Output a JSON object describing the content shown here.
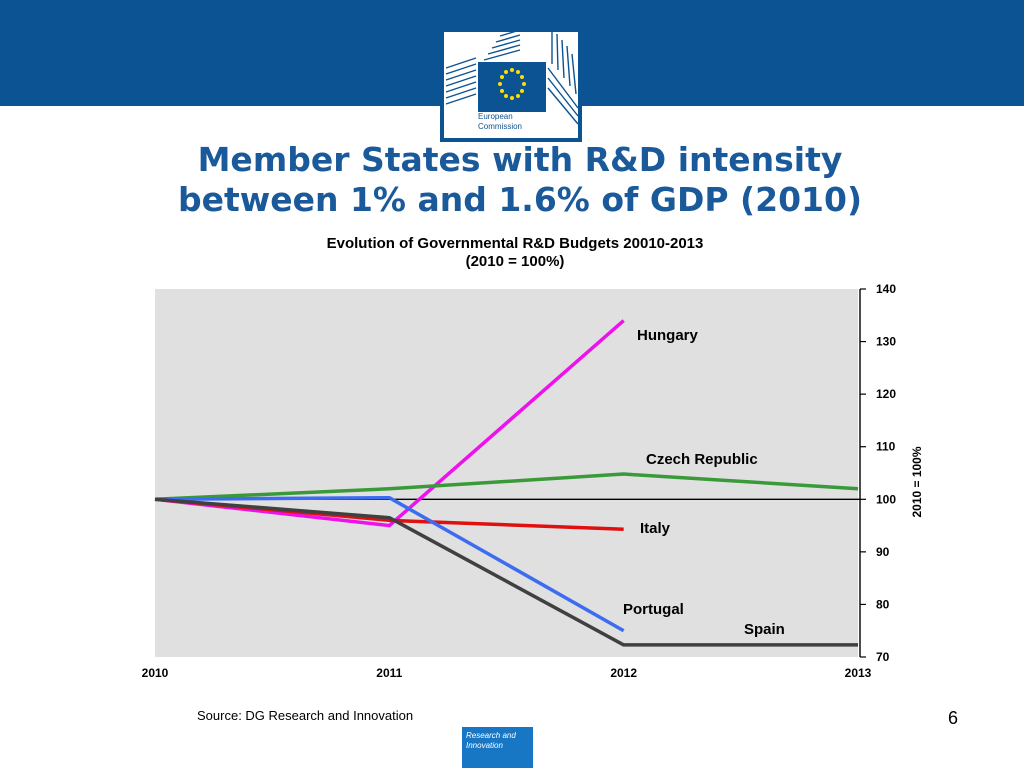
{
  "slide": {
    "title_line1": "Member States with R&D intensity",
    "title_line2": "between 1% and 1.6% of GDP (2010)",
    "logo_caption_line1": "European",
    "logo_caption_line2": "Commission",
    "source": "Source: DG Research and Innovation",
    "page_number": "6",
    "footer_box_line1": "Research and",
    "footer_box_line2": "Innovation"
  },
  "colors": {
    "band": "#0b5392",
    "plot_background": "#e0e0e0"
  },
  "chart_data": {
    "type": "line",
    "title": "Evolution of Governmental R&D Budgets 20010-2013",
    "subtitle": "(2010 = 100%)",
    "ylabel": "2010 = 100%",
    "xlabel": "",
    "x": [
      2010,
      2011,
      2012,
      2013
    ],
    "x_ticks": [
      "2010",
      "2011",
      "2012",
      "2013"
    ],
    "ylim": [
      70,
      140
    ],
    "y_ticks": [
      "70",
      "80",
      "90",
      "100",
      "110",
      "120",
      "130",
      "140"
    ],
    "y_axis_side": "right",
    "grid": false,
    "reference_line": 100,
    "series": [
      {
        "name": "Hungary",
        "color": "#ee11ee",
        "values": [
          100,
          95,
          134,
          null
        ]
      },
      {
        "name": "Czech Republic",
        "color": "#3a9a3a",
        "values": [
          100,
          102,
          104.8,
          102
        ]
      },
      {
        "name": "Italy",
        "color": "#e01010",
        "values": [
          100,
          96,
          94.3,
          null
        ]
      },
      {
        "name": "Portugal",
        "color": "#3d6cf0",
        "values": [
          100,
          100.3,
          75,
          null
        ]
      },
      {
        "name": "Spain",
        "color": "#404040",
        "values": [
          100,
          96.5,
          72.3,
          72.3
        ]
      }
    ]
  }
}
